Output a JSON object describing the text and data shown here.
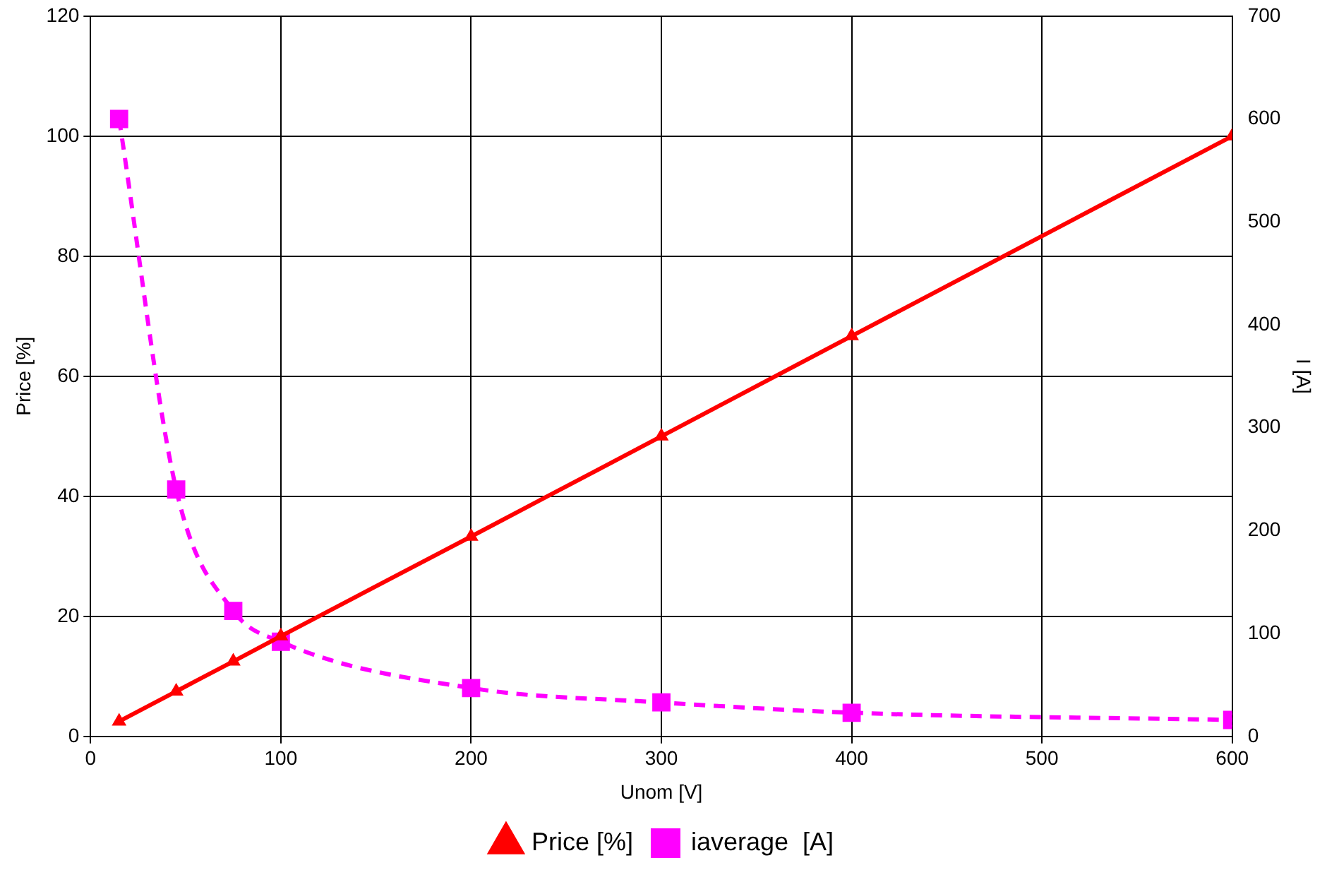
{
  "chart_data": {
    "type": "line",
    "xlabel": "Unom [V]",
    "ylabel": "Price [%]",
    "y2label": "I [A]",
    "x": [
      15,
      45,
      75,
      100,
      200,
      300,
      400,
      600
    ],
    "series": [
      {
        "name": "Price [%]",
        "color": "#ff0000",
        "values": [
          2.5,
          7.5,
          12.5,
          16.7,
          33.3,
          50,
          66.7,
          100
        ],
        "marker": "triangle",
        "line_style": "solid"
      },
      {
        "name": "iaverage  [A]",
        "color": "#ff00ff",
        "values": [
          600,
          240,
          122,
          92,
          47,
          33,
          23,
          16
        ],
        "axis": "y2",
        "marker": "square",
        "line_style": "dashed"
      }
    ],
    "xlim": [
      0,
      600
    ],
    "xticks": [
      0,
      100,
      200,
      300,
      400,
      500,
      600
    ],
    "ylim": [
      0,
      120
    ],
    "yticks": [
      0,
      20,
      40,
      60,
      80,
      100,
      120
    ],
    "y2lim": [
      0,
      700
    ],
    "y2ticks": [
      0,
      100,
      200,
      300,
      400,
      500,
      600,
      700
    ],
    "grid": true,
    "legend": "bottom"
  }
}
